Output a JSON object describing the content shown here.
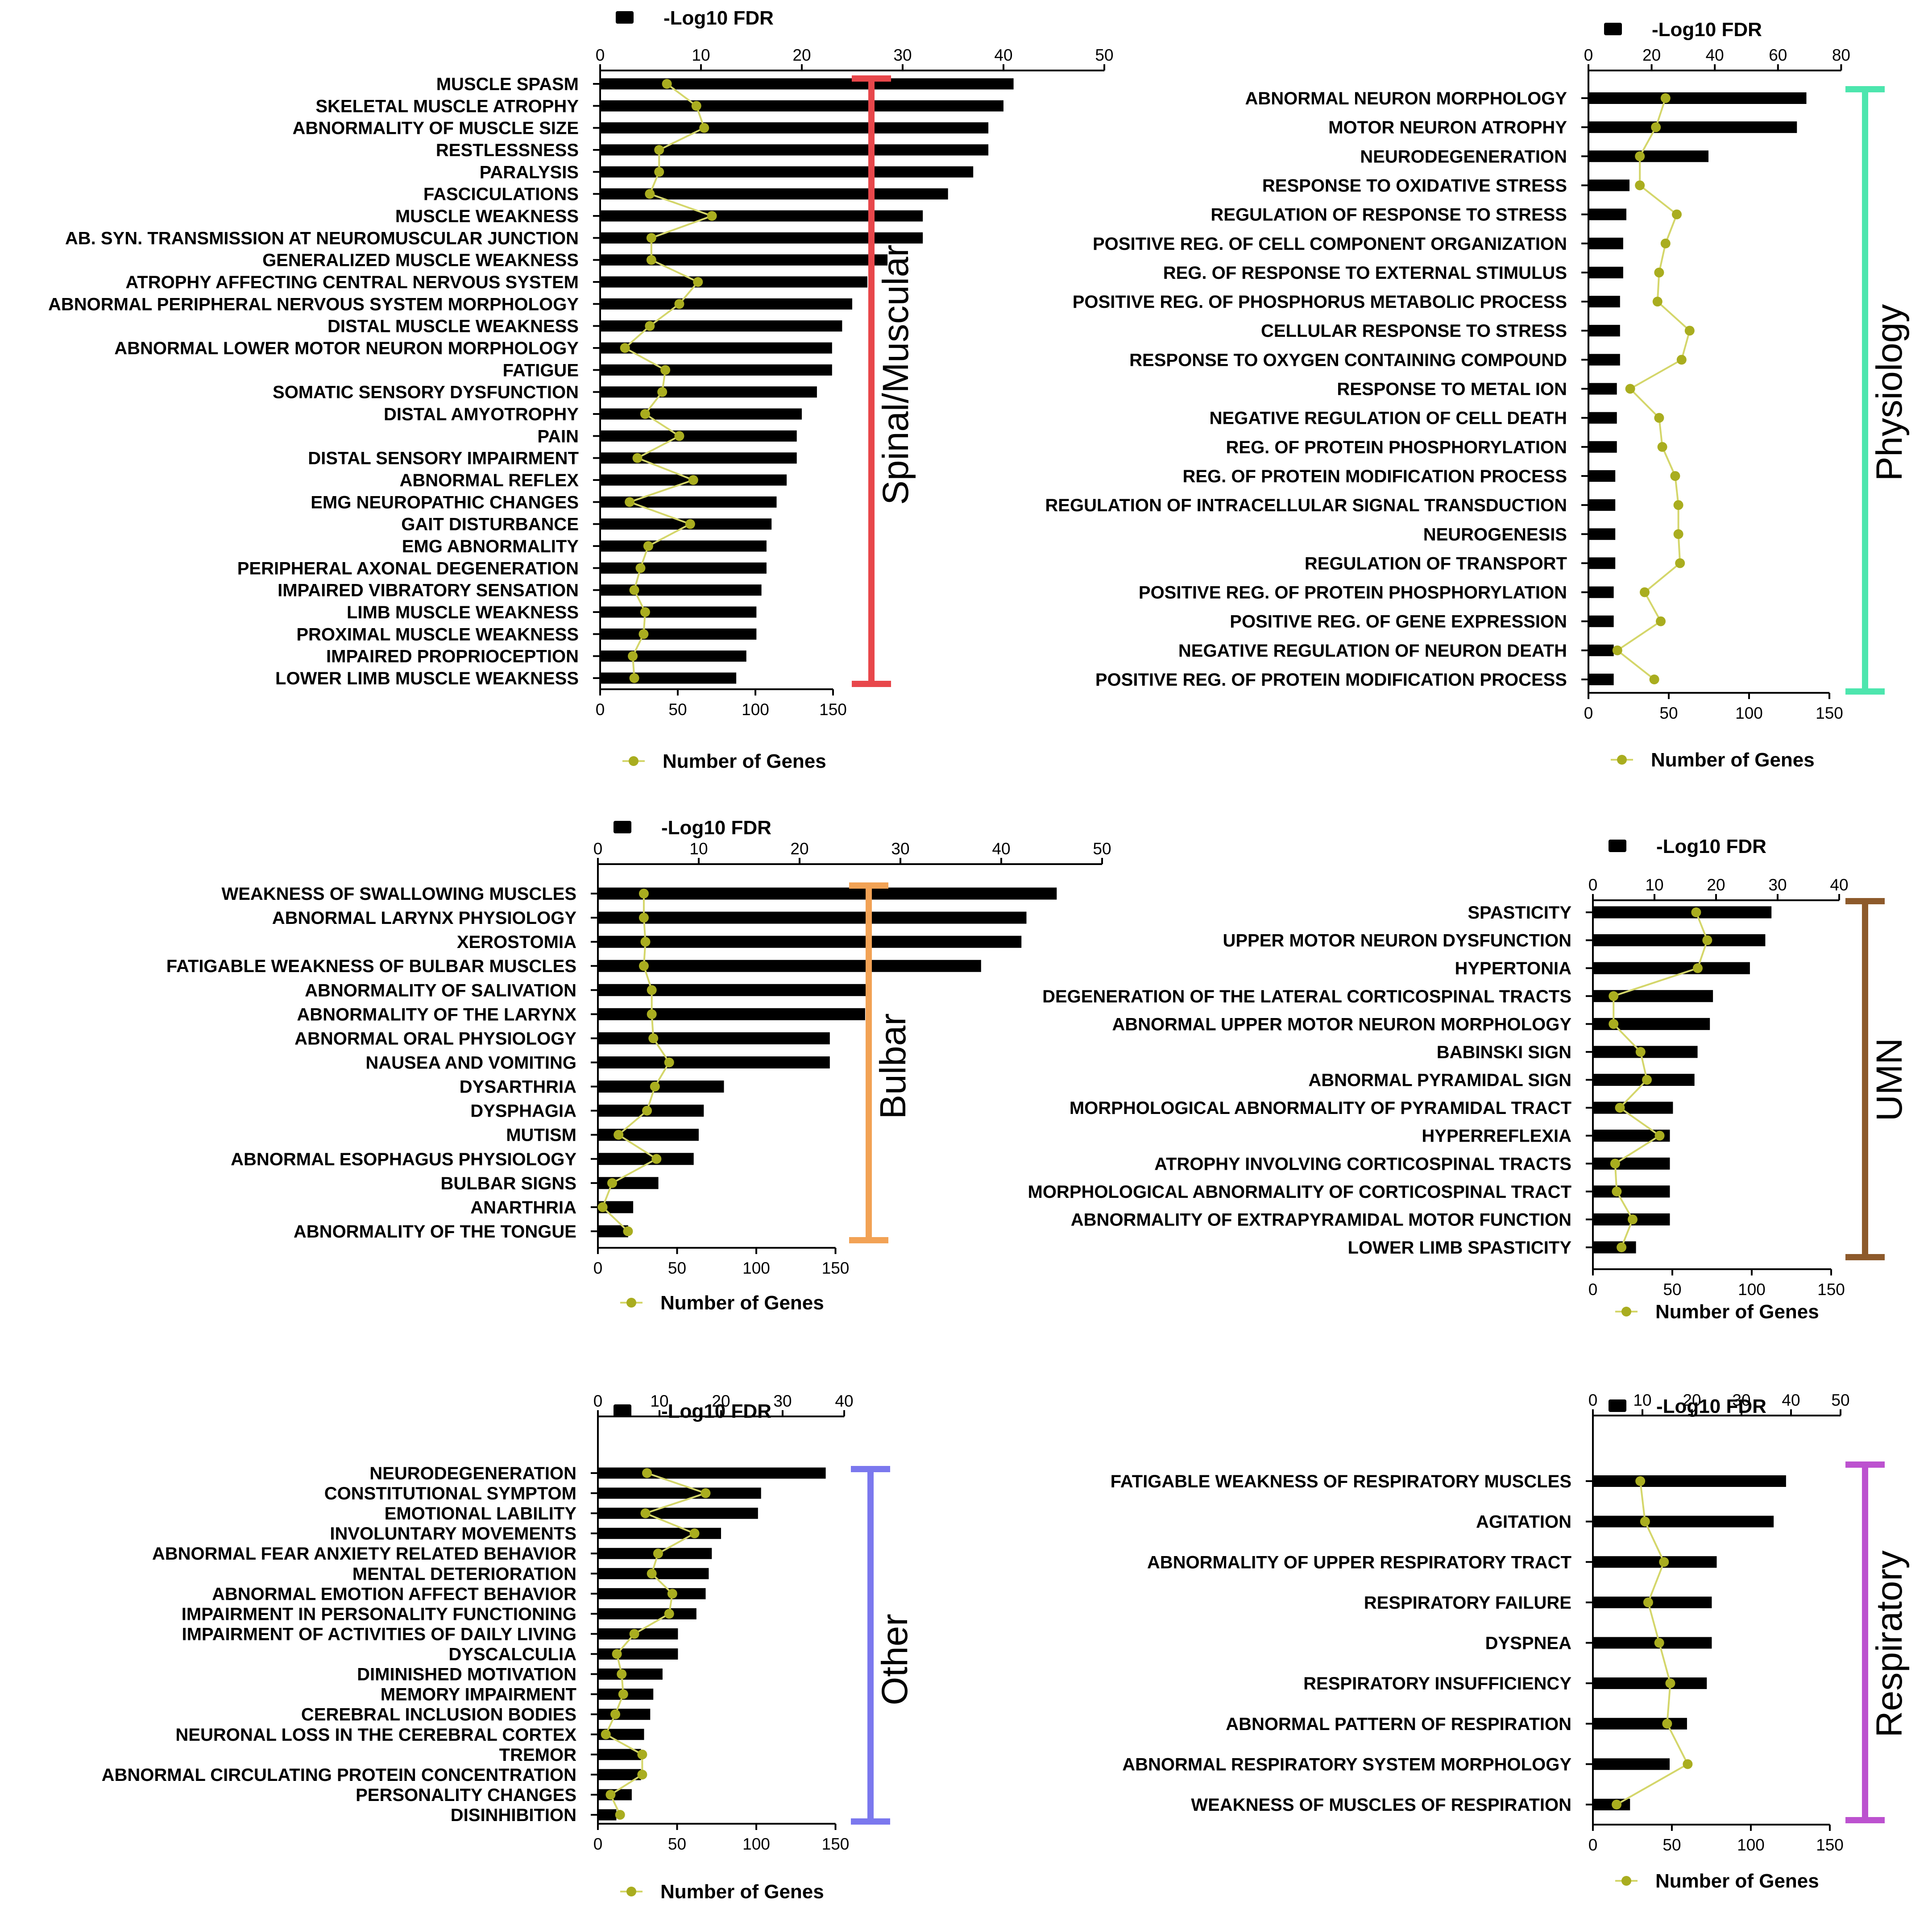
{
  "legend": {
    "bar_label": "-Log10 FDR",
    "line_label": "Number of Genes"
  },
  "colors": {
    "bar": "#000000",
    "line": "#d4d66a",
    "dot": "#a9ad1f"
  },
  "chart_data": [
    {
      "type": "bar",
      "id": "spinal",
      "group_label": "Spinal/Muscular",
      "bracket_color": "#e8474b",
      "fdr_ticks": [
        0,
        10,
        20,
        30,
        40,
        50
      ],
      "fdr_range": [
        0,
        50
      ],
      "genes_ticks": [
        0,
        50,
        100,
        150
      ],
      "genes_range": [
        0,
        150
      ],
      "categories": [
        "MUSCLE SPASM",
        "SKELETAL MUSCLE ATROPHY",
        "ABNORMALITY OF MUSCLE SIZE",
        "RESTLESSNESS",
        "PARALYSIS",
        "FASCICULATIONS",
        "MUSCLE WEAKNESS",
        "AB. SYN. TRANSMISSION AT NEUROMUSCULAR JUNCTION",
        "GENERALIZED MUSCLE WEAKNESS",
        "ATROPHY AFFECTING CENTRAL NERVOUS SYSTEM",
        "ABNORMAL PERIPHERAL NERVOUS SYSTEM MORPHOLOGY",
        "DISTAL MUSCLE WEAKNESS",
        "ABNORMAL LOWER MOTOR NEURON MORPHOLOGY",
        "FATIGUE",
        "SOMATIC SENSORY DYSFUNCTION",
        "DISTAL AMYOTROPHY",
        "PAIN",
        "DISTAL SENSORY IMPAIRMENT",
        "ABNORMAL REFLEX",
        "EMG NEUROPATHIC CHANGES",
        "GAIT DISTURBANCE",
        "EMG ABNORMALITY",
        "PERIPHERAL AXONAL DEGENERATION",
        "IMPAIRED VIBRATORY SENSATION",
        "LIMB MUSCLE WEAKNESS",
        "PROXIMAL MUSCLE WEAKNESS",
        "IMPAIRED PROPRIOCEPTION",
        "LOWER LIMB MUSCLE WEAKNESS"
      ],
      "series": [
        {
          "name": "-Log10 FDR",
          "values": [
            41,
            40,
            38.5,
            38.5,
            37,
            34.5,
            32,
            32,
            28.5,
            26.5,
            25,
            24,
            23,
            23,
            21.5,
            20,
            19.5,
            19.5,
            18.5,
            17.5,
            17,
            16.5,
            16.5,
            16,
            15.5,
            15.5,
            14.5,
            13.5
          ]
        },
        {
          "name": "Number of Genes",
          "values": [
            43,
            62,
            67,
            38,
            38,
            32,
            72,
            33,
            33,
            63,
            51,
            32,
            16,
            42,
            40,
            29,
            51,
            24,
            60,
            19,
            58,
            31,
            26,
            22,
            29,
            28,
            21,
            22
          ]
        }
      ]
    },
    {
      "type": "bar",
      "id": "physiology",
      "group_label": "Physiology",
      "bracket_color": "#4de6ae",
      "fdr_ticks": [
        0,
        20,
        40,
        60,
        80
      ],
      "fdr_range": [
        0,
        80
      ],
      "genes_ticks": [
        0,
        50,
        100,
        150
      ],
      "genes_range": [
        0,
        150
      ],
      "categories": [
        "ABNORMAL NEURON MORPHOLOGY",
        "MOTOR NEURON ATROPHY",
        "NEURODEGENERATION",
        "RESPONSE TO OXIDATIVE STRESS",
        "REGULATION OF RESPONSE TO STRESS",
        "POSITIVE REG. OF CELL COMPONENT ORGANIZATION",
        "REG. OF RESPONSE TO EXTERNAL STIMULUS",
        "POSITIVE REG. OF PHOSPHORUS METABOLIC PROCESS",
        "CELLULAR RESPONSE TO STRESS",
        "RESPONSE TO OXYGEN CONTAINING COMPOUND",
        "RESPONSE TO METAL ION",
        "NEGATIVE REGULATION OF CELL DEATH",
        "REG. OF PROTEIN PHOSPHORYLATION",
        "REG. OF PROTEIN MODIFICATION PROCESS",
        "REGULATION OF INTRACELLULAR SIGNAL TRANSDUCTION",
        "NEUROGENESIS",
        "REGULATION OF TRANSPORT",
        "POSITIVE REG. OF PROTEIN PHOSPHORYLATION",
        "POSITIVE REG. OF GENE EXPRESSION",
        "NEGATIVE REGULATION OF NEURON DEATH",
        "POSITIVE REG. OF PROTEIN MODIFICATION PROCESS"
      ],
      "series": [
        {
          "name": "-Log10 FDR",
          "values": [
            69,
            66,
            38,
            13,
            12,
            11,
            11,
            10,
            10,
            10,
            9,
            9,
            9,
            8.5,
            8.5,
            8.5,
            8.5,
            8,
            8,
            8,
            8
          ]
        },
        {
          "name": "Number of Genes",
          "values": [
            48,
            42,
            32,
            32,
            55,
            48,
            44,
            43,
            63,
            58,
            26,
            44,
            46,
            54,
            56,
            56,
            57,
            35,
            45,
            18,
            41
          ]
        }
      ]
    },
    {
      "type": "bar",
      "id": "bulbar",
      "group_label": "Bulbar",
      "bracket_color": "#f2a255",
      "fdr_ticks": [
        0,
        10,
        20,
        30,
        40,
        50
      ],
      "fdr_range": [
        0,
        50
      ],
      "genes_ticks": [
        0,
        50,
        100,
        150
      ],
      "genes_range": [
        0,
        150
      ],
      "categories": [
        "WEAKNESS OF SWALLOWING MUSCLES",
        "ABNORMAL LARYNX PHYSIOLOGY",
        "XEROSTOMIA",
        "FATIGABLE WEAKNESS OF BULBAR MUSCLES",
        "ABNORMALITY OF SALIVATION",
        "ABNORMALITY OF THE LARYNX",
        "ABNORMAL ORAL PHYSIOLOGY",
        "NAUSEA AND VOMITING",
        "DYSARTHRIA",
        "DYSPHAGIA",
        "MUTISM",
        "ABNORMAL ESOPHAGUS PHYSIOLOGY",
        "BULBAR SIGNS",
        "ANARTHRIA",
        "ABNORMALITY OF THE TONGUE"
      ],
      "series": [
        {
          "name": "-Log10 FDR",
          "values": [
            45.5,
            42.5,
            42,
            38,
            27,
            26.5,
            23,
            23,
            12.5,
            10.5,
            10,
            9.5,
            6,
            3.5,
            3
          ]
        },
        {
          "name": "Number of Genes",
          "values": [
            29,
            29,
            30,
            29,
            34,
            34,
            35,
            45,
            36,
            31,
            13,
            37,
            9,
            3,
            19
          ]
        }
      ]
    },
    {
      "type": "bar",
      "id": "umn",
      "group_label": "UMN",
      "bracket_color": "#8d5a2b",
      "fdr_ticks": [
        0,
        10,
        20,
        30,
        40
      ],
      "fdr_range": [
        0,
        40
      ],
      "genes_ticks": [
        0,
        50,
        100,
        150
      ],
      "genes_range": [
        0,
        150
      ],
      "categories": [
        "SPASTICITY",
        "UPPER MOTOR NEURON DYSFUNCTION",
        "HYPERTONIA",
        "DEGENERATION OF THE LATERAL CORTICOSPINAL TRACTS",
        "ABNORMAL UPPER MOTOR NEURON MORPHOLOGY",
        "BABINSKI SIGN",
        "ABNORMAL PYRAMIDAL SIGN",
        "MORPHOLOGICAL ABNORMALITY OF PYRAMIDAL TRACT",
        "HYPERREFLEXIA",
        "ATROPHY INVOLVING CORTICOSPINAL TRACTS",
        "MORPHOLOGICAL ABNORMALITY OF CORTICOSPINAL TRACT",
        "ABNORMALITY OF EXTRAPYRAMIDAL MOTOR FUNCTION",
        "LOWER LIMB SPASTICITY"
      ],
      "series": [
        {
          "name": "-Log10 FDR",
          "values": [
            29,
            28,
            25.5,
            19.5,
            19,
            17,
            16.5,
            13,
            12.5,
            12.5,
            12.5,
            12.5,
            7
          ]
        },
        {
          "name": "Number of Genes",
          "values": [
            65,
            72,
            66,
            13,
            13,
            30,
            34,
            17,
            42,
            14,
            15,
            25,
            18
          ]
        }
      ]
    },
    {
      "type": "bar",
      "id": "other",
      "group_label": "Other",
      "bracket_color": "#7b78ee",
      "fdr_ticks": [
        0,
        10,
        20,
        30,
        40
      ],
      "fdr_range": [
        0,
        40
      ],
      "genes_ticks": [
        0,
        50,
        100,
        150
      ],
      "genes_range": [
        0,
        150
      ],
      "categories": [
        "NEURODEGENERATION",
        "CONSTITUTIONAL SYMPTOM",
        "EMOTIONAL LABILITY",
        "INVOLUNTARY MOVEMENTS",
        "ABNORMAL FEAR ANXIETY RELATED BEHAVIOR",
        "MENTAL DETERIORATION",
        "ABNORMAL EMOTION AFFECT BEHAVIOR",
        "IMPAIRMENT IN PERSONALITY FUNCTIONING",
        "IMPAIRMENT OF ACTIVITIES OF DAILY LIVING",
        "DYSCALCULIA",
        "DIMINISHED MOTIVATION",
        "MEMORY IMPAIRMENT",
        "CEREBRAL INCLUSION BODIES",
        "NEURONAL LOSS IN THE CEREBRAL CORTEX",
        "TREMOR",
        "ABNORMAL CIRCULATING PROTEIN CONCENTRATION",
        "PERSONALITY CHANGES",
        "DISINHIBITION"
      ],
      "series": [
        {
          "name": "-Log10 FDR",
          "values": [
            37,
            26.5,
            26,
            20,
            18.5,
            18,
            17.5,
            16,
            13,
            13,
            10.5,
            9,
            8.5,
            7.5,
            7,
            7,
            5.5,
            3
          ]
        },
        {
          "name": "Number of Genes",
          "values": [
            31,
            68,
            30,
            61,
            38,
            34,
            47,
            45,
            23,
            12,
            15,
            16,
            11,
            5,
            28,
            28,
            8,
            14
          ]
        }
      ]
    },
    {
      "type": "bar",
      "id": "respiratory",
      "group_label": "Respiratory",
      "bracket_color": "#bc52cf",
      "fdr_ticks": [
        0,
        10,
        20,
        30,
        40,
        50
      ],
      "fdr_range": [
        0,
        50
      ],
      "genes_ticks": [
        0,
        50,
        100,
        150
      ],
      "genes_range": [
        0,
        150
      ],
      "categories": [
        "FATIGABLE WEAKNESS OF RESPIRATORY MUSCLES",
        "AGITATION",
        "ABNORMALITY OF UPPER RESPIRATORY TRACT",
        "RESPIRATORY FAILURE",
        "DYSPNEA",
        "RESPIRATORY INSUFFICIENCY",
        "ABNORMAL PATTERN OF RESPIRATION",
        "ABNORMAL RESPIRATORY SYSTEM MORPHOLOGY",
        "WEAKNESS OF MUSCLES OF RESPIRATION"
      ],
      "series": [
        {
          "name": "-Log10 FDR",
          "values": [
            39,
            36.5,
            25,
            24,
            24,
            23,
            19,
            15.5,
            7.5
          ]
        },
        {
          "name": "Number of Genes",
          "values": [
            30,
            33,
            45,
            35,
            42,
            49,
            47,
            60,
            15
          ]
        }
      ]
    }
  ]
}
